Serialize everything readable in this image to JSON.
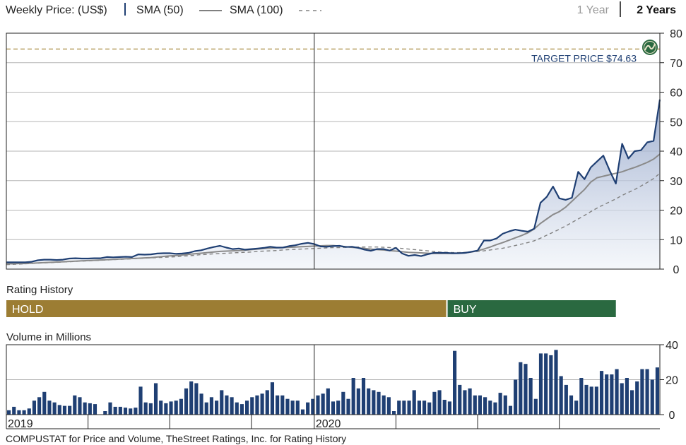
{
  "header": {
    "weekly_price_label": "Weekly Price: (US$)",
    "sma50_label": "SMA (50)",
    "sma100_label": "SMA (100)",
    "tabs": [
      {
        "label": "1 Year",
        "selected": false
      },
      {
        "label": "2 Years",
        "selected": true
      }
    ]
  },
  "target": {
    "label": "TARGET PRICE $74.63",
    "value": 74.63,
    "icon": "thestreet-logo-icon"
  },
  "rating": {
    "title": "Rating History",
    "segments": [
      {
        "label": "HOLD",
        "color": "#9c7d33",
        "start_week": 0,
        "end_week": 70
      },
      {
        "label": "BUY",
        "color": "#2a6940",
        "start_week": 70,
        "end_week": 97
      }
    ]
  },
  "volume_title": "Volume in Millions",
  "year_labels": [
    {
      "label": "2019",
      "week": 0
    },
    {
      "label": "2020",
      "week": 49
    }
  ],
  "footer": "COMPUSTAT for Price and Volume, TheStreet Ratings, Inc. for Rating History",
  "colors": {
    "price": "#1f3f73",
    "sma50": "#808080",
    "sma100": "#808080",
    "volume": "#1f3f73",
    "target": "#b09550",
    "grid": "#b5b5b5"
  },
  "chart_data": [
    {
      "type": "line",
      "x_unit": "week",
      "ylim": [
        0,
        80
      ],
      "yticks": [
        0,
        10,
        20,
        30,
        40,
        50,
        60,
        70,
        80
      ],
      "grid": true,
      "series": [
        {
          "name": "Weekly Price",
          "values": [
            2.3,
            2.3,
            2.3,
            2.3,
            2.5,
            3,
            3.2,
            3.2,
            3.1,
            3.2,
            3.6,
            3.7,
            3.6,
            3.6,
            3.7,
            3.7,
            4.1,
            4.0,
            4.1,
            4.2,
            4.1,
            5.0,
            4.9,
            5.0,
            5.3,
            5.4,
            5.4,
            5.2,
            5.3,
            5.5,
            6.1,
            6.4,
            7.0,
            7.5,
            7.9,
            7.3,
            6.8,
            7.0,
            6.6,
            6.8,
            7.0,
            7.2,
            7.6,
            7.3,
            7.3,
            7.8,
            8.1,
            8.6,
            8.9,
            8.5,
            7.7,
            7.6,
            7.8,
            7.9,
            7.5,
            7.6,
            7.2,
            6.6,
            6.2,
            6.8,
            6.8,
            6.3,
            7.2,
            5.3,
            4.5,
            4.8,
            4.4,
            5.0,
            5.5,
            5.5,
            5.5,
            5.4,
            5.4,
            5.5,
            5.9,
            6.3,
            9.7,
            9.7,
            10.4,
            12.0,
            12.8,
            13.4,
            13.0,
            12.7,
            13.7,
            22.5,
            24.5,
            28.0,
            24.0,
            23.5,
            24.2,
            33.0,
            30.5,
            34.5,
            36.5,
            38.5,
            33.5,
            29.0,
            42.5,
            37.5,
            40.0,
            40.3,
            43.0,
            43.5,
            57.5
          ]
        },
        {
          "name": "SMA (50)",
          "values": [
            1.8,
            1.8,
            1.9,
            1.9,
            2.0,
            2.1,
            2.2,
            2.3,
            2.4,
            2.5,
            2.6,
            2.7,
            2.8,
            2.9,
            3.0,
            3.1,
            3.2,
            3.3,
            3.4,
            3.5,
            3.6,
            3.7,
            3.8,
            3.9,
            4.1,
            4.3,
            4.5,
            4.6,
            4.8,
            5.0,
            5.2,
            5.4,
            5.6,
            5.8,
            6.0,
            6.1,
            6.2,
            6.3,
            6.4,
            6.6,
            6.8,
            7.0,
            7.1,
            7.2,
            7.3,
            7.4,
            7.5,
            7.6,
            7.7,
            7.8,
            7.9,
            8.0,
            8.0,
            7.8,
            7.6,
            7.4,
            7.2,
            7.0,
            6.8,
            6.6,
            6.5,
            6.3,
            6.1,
            5.9,
            5.7,
            5.6,
            5.5,
            5.4,
            5.3,
            5.3,
            5.3,
            5.3,
            5.4,
            5.5,
            5.8,
            6.2,
            6.8,
            7.5,
            8.3,
            9.0,
            9.8,
            10.6,
            11.4,
            12.3,
            13.6,
            15.5,
            17.0,
            18.5,
            19.5,
            21.0,
            23.0,
            25.0,
            27.0,
            29.5,
            31.0,
            31.5,
            32.0,
            32.5,
            33.0,
            33.8,
            34.5,
            35.3,
            36.2,
            37.3,
            39.0
          ]
        },
        {
          "name": "SMA (100)",
          "values": [
            1.5,
            1.6,
            1.7,
            1.8,
            1.9,
            2.0,
            2.1,
            2.2,
            2.3,
            2.4,
            2.5,
            2.6,
            2.7,
            2.8,
            2.9,
            3.0,
            3.1,
            3.2,
            3.3,
            3.4,
            3.5,
            3.6,
            3.7,
            3.8,
            3.9,
            4.0,
            4.1,
            4.2,
            4.4,
            4.5,
            4.7,
            4.9,
            5.0,
            5.2,
            5.3,
            5.4,
            5.5,
            5.6,
            5.7,
            5.8,
            6.0,
            6.1,
            6.2,
            6.3,
            6.5,
            6.6,
            6.7,
            6.8,
            6.9,
            7.0,
            7.1,
            7.2,
            7.3,
            7.3,
            7.4,
            7.4,
            7.5,
            7.5,
            7.5,
            7.5,
            7.4,
            7.3,
            7.2,
            7.0,
            6.8,
            6.6,
            6.4,
            6.2,
            6.0,
            5.8,
            5.7,
            5.6,
            5.6,
            5.7,
            5.8,
            6.0,
            6.2,
            6.5,
            6.8,
            7.1,
            7.5,
            8.0,
            8.5,
            9.0,
            9.6,
            10.5,
            11.5,
            12.5,
            13.5,
            14.6,
            15.8,
            17.0,
            18.2,
            19.5,
            20.7,
            21.8,
            22.8,
            23.8,
            25.0,
            26.0,
            27.0,
            28.2,
            29.4,
            30.7,
            32.5
          ]
        }
      ]
    },
    {
      "type": "bar",
      "x_unit": "week",
      "ylim": [
        0,
        40
      ],
      "yticks": [
        0,
        20,
        40
      ],
      "grid": true,
      "series": [
        {
          "name": "Volume in Millions",
          "values": [
            2.5,
            4.5,
            2.5,
            2.5,
            3.5,
            8,
            10,
            13,
            8,
            7,
            5.5,
            5,
            5,
            11,
            10,
            7,
            6.5,
            6,
            0,
            2,
            7,
            4.5,
            4.5,
            4,
            3.5,
            4,
            16,
            7,
            6.5,
            18,
            8,
            6.5,
            7.5,
            8,
            9,
            15,
            19,
            18,
            12,
            7,
            10,
            8,
            14,
            11,
            10,
            7,
            6,
            8,
            10,
            11,
            12,
            14,
            18.5,
            11,
            11,
            9,
            8,
            8,
            3,
            7,
            9,
            11,
            12,
            15,
            7.5,
            8,
            13,
            9,
            21,
            15,
            21,
            15,
            14,
            13,
            11,
            10,
            2,
            8,
            8,
            8,
            14,
            8,
            8,
            7,
            13,
            14,
            8.5,
            7.5,
            36.5,
            17,
            14,
            15,
            11,
            11,
            10,
            8,
            7,
            12.5,
            11,
            5,
            20,
            30,
            29,
            21,
            9,
            35,
            35,
            34,
            37,
            22,
            17,
            11,
            8,
            21,
            17,
            16,
            16,
            25,
            23,
            23,
            26,
            18,
            21,
            14,
            19,
            26,
            26,
            20,
            27
          ]
        }
      ]
    }
  ]
}
